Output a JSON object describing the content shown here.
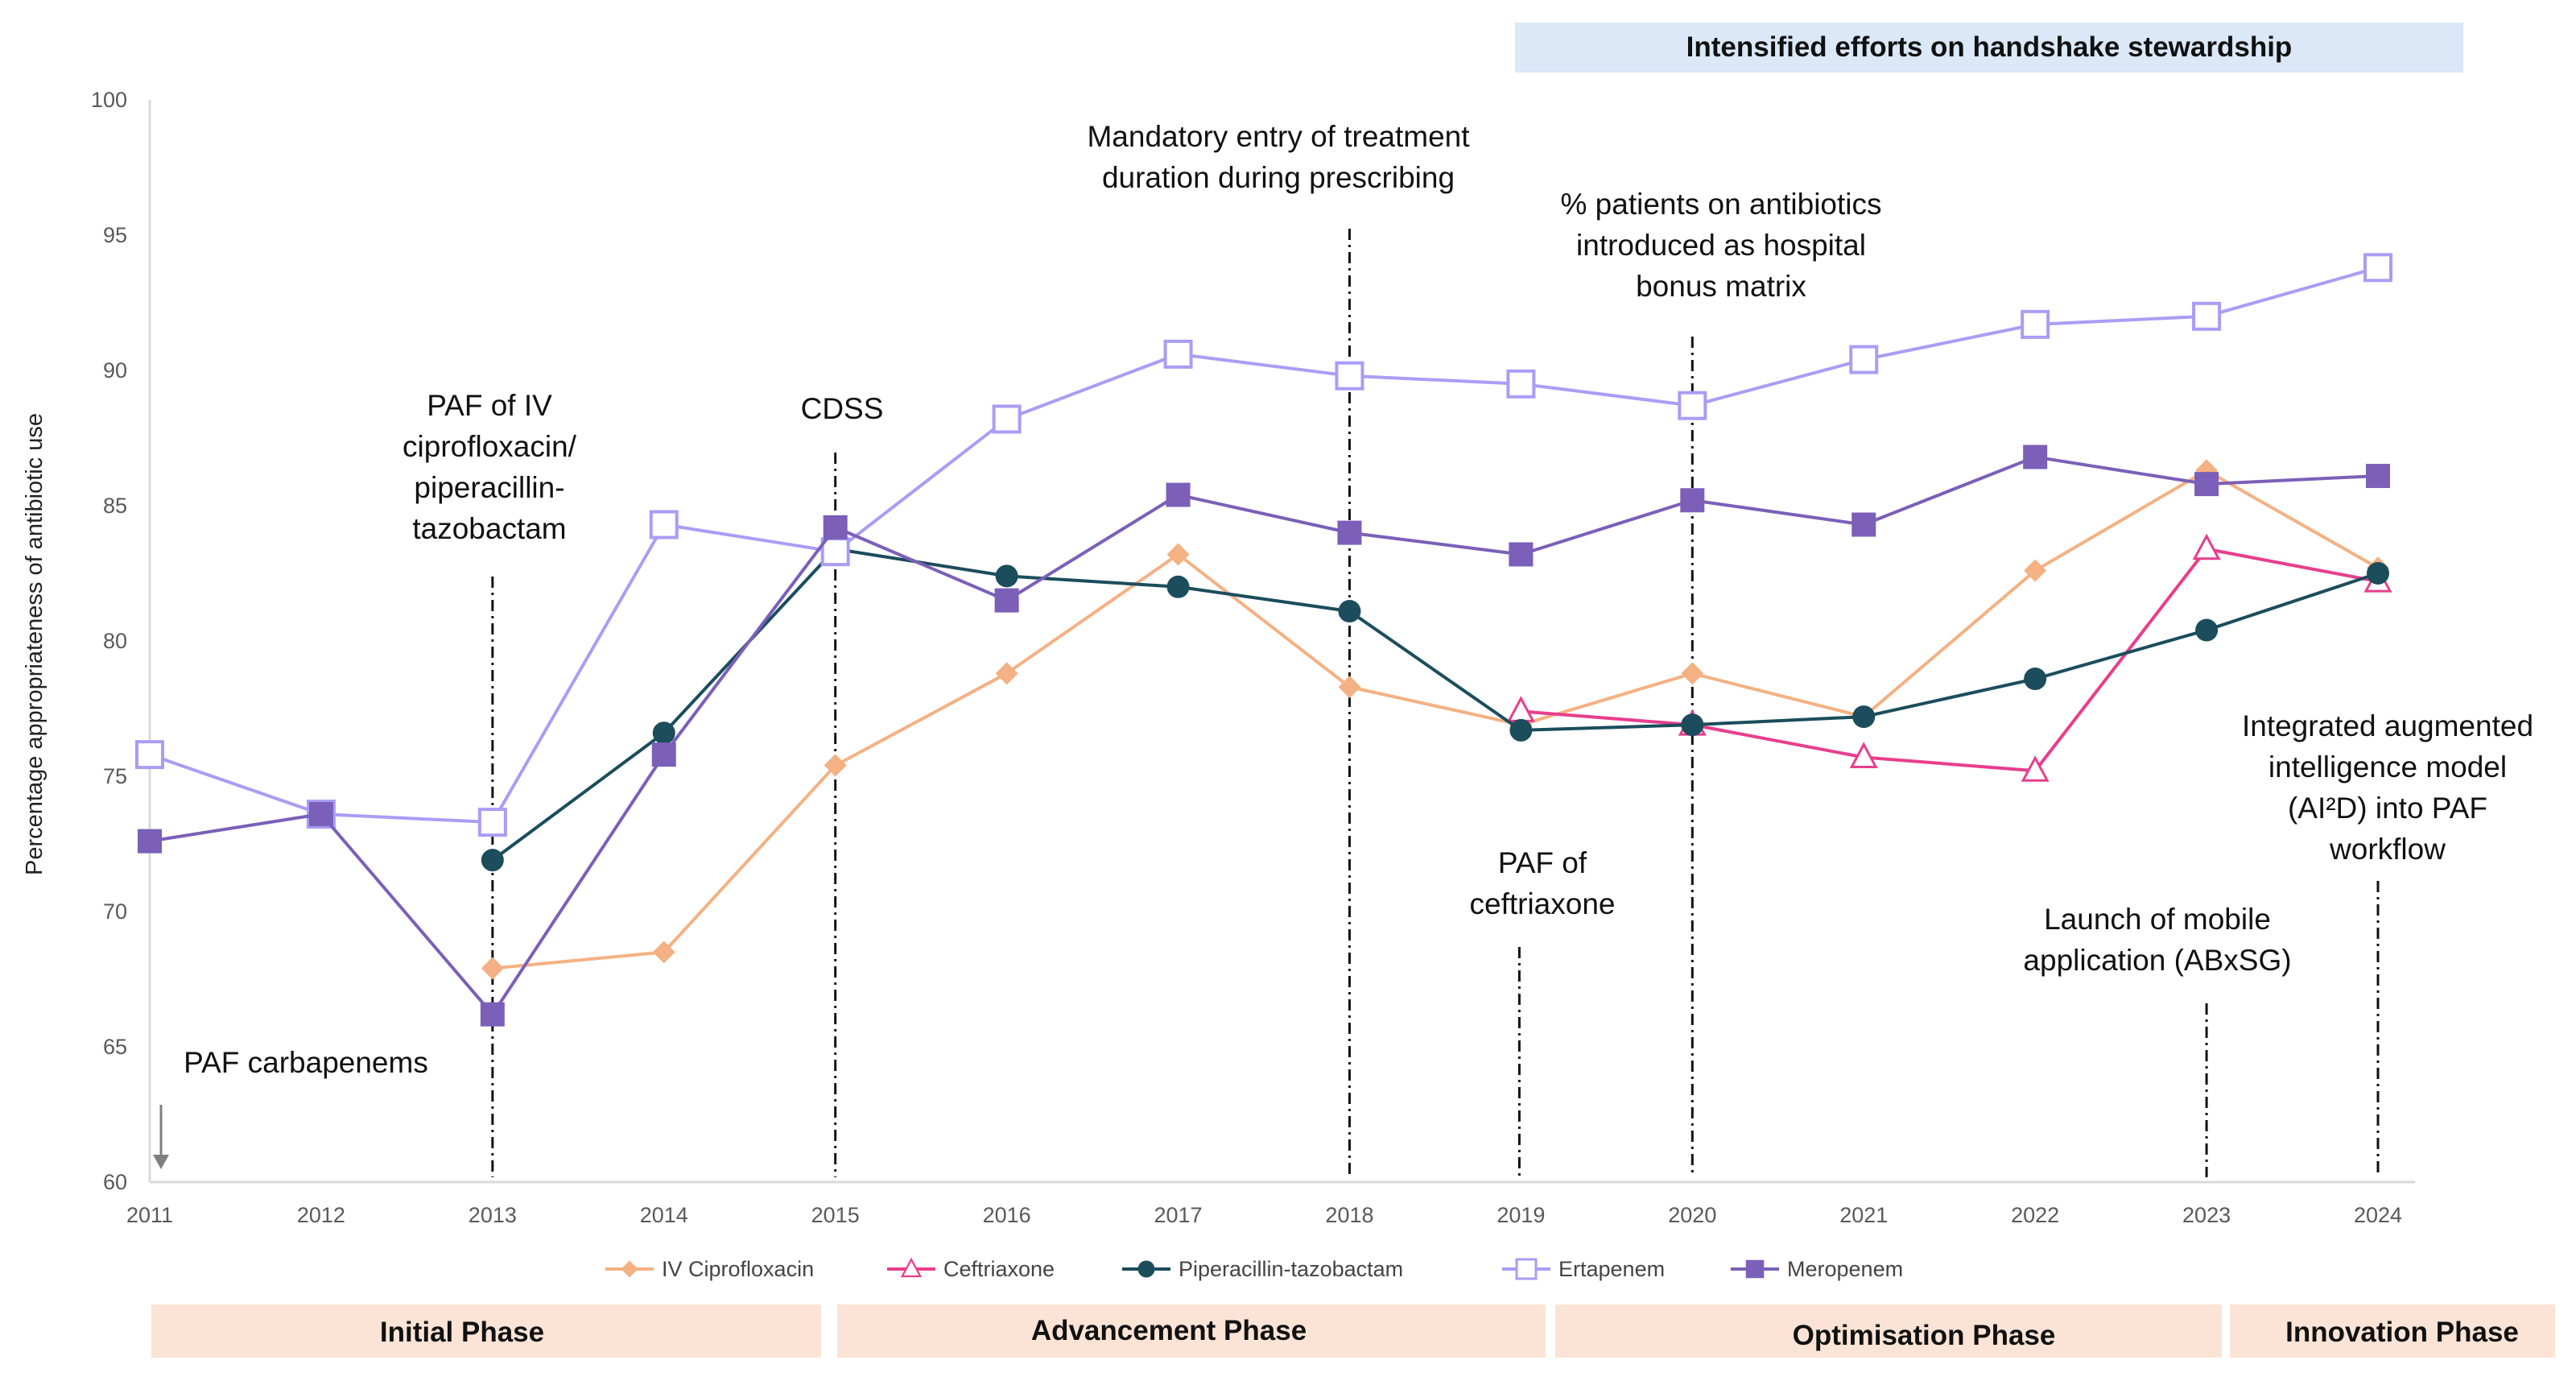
{
  "chart_data": {
    "type": "line",
    "title": "",
    "xlabel": "",
    "ylabel": "Percentage appropriateness of antibiotic use",
    "ylim": [
      60,
      100
    ],
    "yticks": [
      60,
      65,
      70,
      75,
      80,
      85,
      90,
      95,
      100
    ],
    "x": [
      2011,
      2012,
      2013,
      2014,
      2015,
      2016,
      2017,
      2018,
      2019,
      2020,
      2021,
      2022,
      2023,
      2024
    ],
    "grid": false,
    "legend_position": "bottom",
    "series": [
      {
        "name": "IV Ciprofloxacin",
        "color": "#f4b183",
        "marker": "diamond-filled",
        "values": [
          null,
          null,
          67.9,
          68.5,
          75.4,
          78.8,
          83.2,
          78.3,
          76.9,
          78.8,
          77.2,
          82.6,
          86.3,
          82.7
        ]
      },
      {
        "name": "Ceftriaxone",
        "color": "#e83e8c",
        "marker": "triangle-open",
        "values": [
          null,
          null,
          null,
          null,
          null,
          null,
          null,
          null,
          77.4,
          76.9,
          75.7,
          75.2,
          83.4,
          82.2
        ]
      },
      {
        "name": "Piperacillin-tazobactam",
        "color": "#1b4d5c",
        "marker": "circle-filled",
        "values": [
          null,
          null,
          71.9,
          76.6,
          83.4,
          82.4,
          82.0,
          81.1,
          76.7,
          76.9,
          77.2,
          78.6,
          80.4,
          82.5
        ]
      },
      {
        "name": "Ertapenem",
        "color": "#a99df5",
        "marker": "square-open",
        "values": [
          75.8,
          73.6,
          73.3,
          84.3,
          83.3,
          88.2,
          90.6,
          89.8,
          89.5,
          88.7,
          90.4,
          91.7,
          92.0,
          93.8
        ]
      },
      {
        "name": "Meropenem",
        "color": "#7b5fb8",
        "marker": "square-filled",
        "values": [
          72.6,
          73.6,
          66.2,
          75.8,
          84.2,
          81.5,
          85.4,
          84.0,
          83.2,
          85.2,
          84.3,
          86.8,
          85.8,
          86.1
        ]
      }
    ],
    "annotations": [
      {
        "year": 2011,
        "lines": [
          "PAF carbapenems"
        ]
      },
      {
        "year": 2013,
        "lines": [
          "PAF of  IV",
          "ciprofloxacin/",
          "piperacillin-",
          "tazobactam"
        ]
      },
      {
        "year": 2015,
        "lines": [
          "CDSS"
        ]
      },
      {
        "year": 2018,
        "lines": [
          "Mandatory entry of treatment",
          "duration during prescribing"
        ]
      },
      {
        "year": 2019,
        "lines": [
          "PAF of",
          "ceftriaxone"
        ]
      },
      {
        "year": 2020,
        "lines": [
          "% patients on antibiotics",
          "introduced as hospital",
          "bonus matrix"
        ]
      },
      {
        "year": 2023,
        "lines": [
          "Launch of mobile",
          "application (ABxSG)"
        ]
      },
      {
        "year": 2024,
        "lines": [
          "Integrated augmented",
          "intelligence model",
          "(AI²D) into PAF",
          "workflow"
        ]
      }
    ],
    "top_band": {
      "label": "Intensified efforts on handshake stewardship",
      "color": "#dae8f7"
    },
    "phases": [
      {
        "label": "Initial Phase",
        "color": "#fbe4d6"
      },
      {
        "label": "Advancement Phase",
        "color": "#fbe4d6"
      },
      {
        "label": "Optimisation Phase",
        "color": "#fbe4d6"
      },
      {
        "label": "Innovation Phase",
        "color": "#fbe4d6"
      }
    ]
  }
}
